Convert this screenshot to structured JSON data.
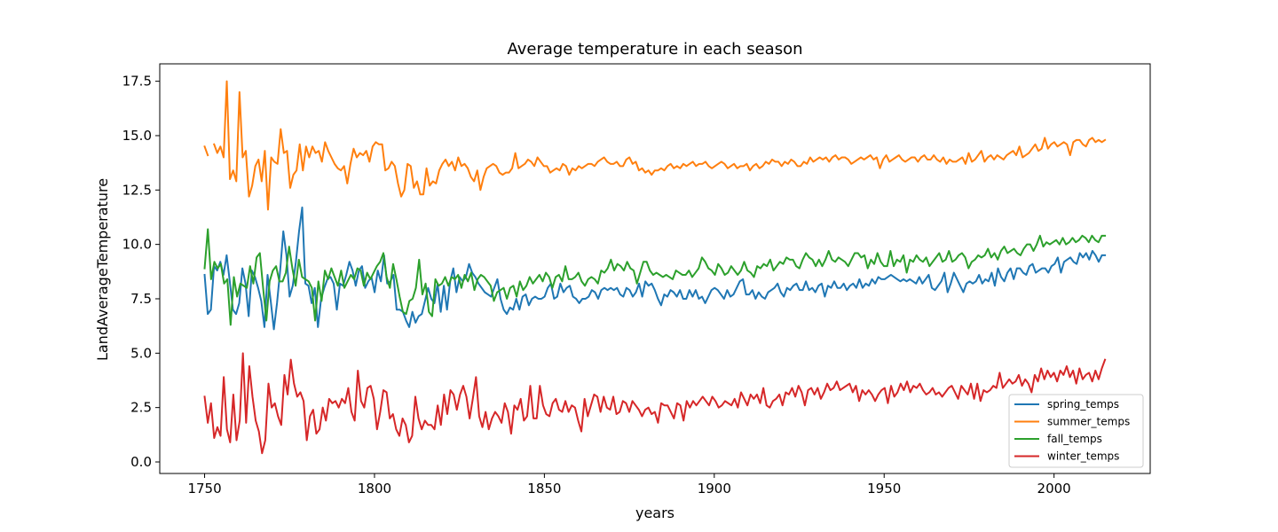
{
  "chart_data": {
    "type": "line",
    "title": "Average temperature in each season",
    "xlabel": "years",
    "ylabel": "LandAverageTemperature",
    "xlim": [
      1736.8,
      2028.3
    ],
    "ylim": [
      -0.53,
      18.3
    ],
    "x_ticks": [
      {
        "value": 1750,
        "label": "1750"
      },
      {
        "value": 1800,
        "label": "1800"
      },
      {
        "value": 1850,
        "label": "1850"
      },
      {
        "value": 1900,
        "label": "1900"
      },
      {
        "value": 1950,
        "label": "1950"
      },
      {
        "value": 2000,
        "label": "2000"
      }
    ],
    "y_ticks": [
      {
        "value": 0.0,
        "label": "0.0"
      },
      {
        "value": 2.5,
        "label": "2.5"
      },
      {
        "value": 5.0,
        "label": "5.0"
      },
      {
        "value": 7.5,
        "label": "7.5"
      },
      {
        "value": 10.0,
        "label": "10.0"
      },
      {
        "value": 12.5,
        "label": "12.5"
      },
      {
        "value": 15.0,
        "label": "15.0"
      },
      {
        "value": 17.5,
        "label": "17.5"
      }
    ],
    "grid": false,
    "legend_position": "lower-right",
    "x_start": 1750,
    "x_end": 2015,
    "series": [
      {
        "name": "spring_temps",
        "color": "#1f77b4",
        "values": [
          8.6,
          6.8,
          7.0,
          9.0,
          8.8,
          9.2,
          8.6,
          9.5,
          8.3,
          7.0,
          6.8,
          7.3,
          8.9,
          8.2,
          6.7,
          8.8,
          8.5,
          8.0,
          7.4,
          6.2,
          8.6,
          7.4,
          6.1,
          7.3,
          8.8,
          10.6,
          9.5,
          7.6,
          8.1,
          9.2,
          10.6,
          11.7,
          8.2,
          8.1,
          7.3,
          8.0,
          6.2,
          7.5,
          8.0,
          8.4,
          8.5,
          8.2,
          7.0,
          8.2,
          8.1,
          8.6,
          9.2,
          8.8,
          8.1,
          8.8,
          9.0,
          8.0,
          8.3,
          8.5,
          7.8,
          8.8,
          8.3,
          9.5,
          8.2,
          8.3,
          8.6,
          7.0,
          7.0,
          6.9,
          6.5,
          6.2,
          6.9,
          6.4,
          6.7,
          6.8,
          7.4,
          8.0,
          7.5,
          7.3,
          8.2,
          6.9,
          8.1,
          7.0,
          8.3,
          8.9,
          7.8,
          8.5,
          8.3,
          8.5,
          9.1,
          8.7,
          8.5,
          8.2,
          8.0,
          7.8,
          7.7,
          7.6,
          8.0,
          8.4,
          7.5,
          7.0,
          6.8,
          7.1,
          7.0,
          7.5,
          7.0,
          7.6,
          7.7,
          7.2,
          7.5,
          7.6,
          7.5,
          7.5,
          7.6,
          8.0,
          8.2,
          7.5,
          7.6,
          8.2,
          7.8,
          8.0,
          8.1,
          7.6,
          7.5,
          7.3,
          7.5,
          7.5,
          7.6,
          7.9,
          7.8,
          7.5,
          7.9,
          8.0,
          7.9,
          8.0,
          7.9,
          8.0,
          7.7,
          7.6,
          8.0,
          7.9,
          7.6,
          7.8,
          8.2,
          7.6,
          8.3,
          8.1,
          8.2,
          7.9,
          7.5,
          7.2,
          7.7,
          7.6,
          7.9,
          7.8,
          7.6,
          7.9,
          7.5,
          7.5,
          7.9,
          7.6,
          7.9,
          7.5,
          7.6,
          7.3,
          7.6,
          7.9,
          8.0,
          7.9,
          7.7,
          7.5,
          7.9,
          7.6,
          7.7,
          8.0,
          8.3,
          8.4,
          7.7,
          7.7,
          7.9,
          7.5,
          7.8,
          7.6,
          7.5,
          7.8,
          7.9,
          8.0,
          8.2,
          7.8,
          7.6,
          8.0,
          7.9,
          8.1,
          8.2,
          7.9,
          7.9,
          8.3,
          7.9,
          8.0,
          7.8,
          8.1,
          8.2,
          7.6,
          8.1,
          8.0,
          8.3,
          8.0,
          8.0,
          8.2,
          7.9,
          8.1,
          8.2,
          8.0,
          8.4,
          8.0,
          8.2,
          8.1,
          8.4,
          8.2,
          8.5,
          8.4,
          8.4,
          8.5,
          8.6,
          8.5,
          8.4,
          8.3,
          8.4,
          8.3,
          8.4,
          8.3,
          8.2,
          8.5,
          8.2,
          8.4,
          8.6,
          8.0,
          7.9,
          8.1,
          8.3,
          8.7,
          7.8,
          8.2,
          8.7,
          8.4,
          8.1,
          7.8,
          8.2,
          8.3,
          8.2,
          8.3,
          8.6,
          8.2,
          8.4,
          8.3,
          8.7,
          8.1,
          8.9,
          8.5,
          8.3,
          8.7,
          8.9,
          8.4,
          8.9,
          8.9,
          8.7,
          8.6,
          9.0,
          9.1,
          8.7,
          8.8,
          8.9,
          8.9,
          8.7,
          9.0,
          9.1,
          9.4,
          8.7,
          9.2,
          9.3,
          9.4,
          9.2,
          9.1,
          9.6,
          9.4,
          9.6,
          9.3,
          9.7,
          9.5,
          9.2,
          9.5,
          9.5
        ]
      },
      {
        "name": "summer_temps",
        "color": "#ff7f0e",
        "values": [
          14.5,
          14.1,
          null,
          14.6,
          14.2,
          14.5,
          14.0,
          17.5,
          13.0,
          13.4,
          12.9,
          17.0,
          14.0,
          14.3,
          12.2,
          12.7,
          13.6,
          13.9,
          12.9,
          14.3,
          11.6,
          14.0,
          13.8,
          13.7,
          15.3,
          14.2,
          14.3,
          12.6,
          13.2,
          13.4,
          14.6,
          13.4,
          14.5,
          14.0,
          14.5,
          14.2,
          14.3,
          13.8,
          14.7,
          14.3,
          14.0,
          13.7,
          13.5,
          13.4,
          13.6,
          12.8,
          13.7,
          14.4,
          14.0,
          14.2,
          14.1,
          14.3,
          13.8,
          14.5,
          14.7,
          14.6,
          14.6,
          13.4,
          13.5,
          13.8,
          13.6,
          12.8,
          12.2,
          12.5,
          13.7,
          13.6,
          12.6,
          12.9,
          12.3,
          12.3,
          13.5,
          12.7,
          12.9,
          12.8,
          13.4,
          13.7,
          13.9,
          13.6,
          13.8,
          13.4,
          14.0,
          13.6,
          13.7,
          13.5,
          13.1,
          12.9,
          13.4,
          12.5,
          13.1,
          13.5,
          13.6,
          13.7,
          13.6,
          13.3,
          13.2,
          13.3,
          13.3,
          13.5,
          14.2,
          13.5,
          13.6,
          13.7,
          13.9,
          13.8,
          13.6,
          14.0,
          13.8,
          13.6,
          13.6,
          13.3,
          13.4,
          13.5,
          13.4,
          13.7,
          13.6,
          13.2,
          13.5,
          13.4,
          13.6,
          13.5,
          13.6,
          13.7,
          13.7,
          13.6,
          13.8,
          13.9,
          14.0,
          13.8,
          13.7,
          13.7,
          13.8,
          13.6,
          13.6,
          13.9,
          14.0,
          13.7,
          13.8,
          13.4,
          13.5,
          13.3,
          13.4,
          13.2,
          13.4,
          13.4,
          13.5,
          13.4,
          13.6,
          13.7,
          13.5,
          13.6,
          13.5,
          13.7,
          13.6,
          13.7,
          13.8,
          13.6,
          13.7,
          13.7,
          13.8,
          13.6,
          13.5,
          13.6,
          13.7,
          13.8,
          13.7,
          13.5,
          13.6,
          13.7,
          13.5,
          13.6,
          13.6,
          13.7,
          13.4,
          13.6,
          13.7,
          13.5,
          13.6,
          13.8,
          13.7,
          13.9,
          13.8,
          13.8,
          13.6,
          13.8,
          13.7,
          13.9,
          13.8,
          13.6,
          13.6,
          13.8,
          13.7,
          14.0,
          13.8,
          13.9,
          14.0,
          13.9,
          14.0,
          13.8,
          14.0,
          14.1,
          13.9,
          14.0,
          14.0,
          13.9,
          13.7,
          13.8,
          13.9,
          14.0,
          13.9,
          14.0,
          14.1,
          13.9,
          14.0,
          13.5,
          13.9,
          14.1,
          13.8,
          13.9,
          14.0,
          14.1,
          13.9,
          13.8,
          13.9,
          14.0,
          14.0,
          13.8,
          14.0,
          14.1,
          13.9,
          13.9,
          14.1,
          13.9,
          13.8,
          14.0,
          13.7,
          13.9,
          13.8,
          13.8,
          13.9,
          14.0,
          13.7,
          14.2,
          13.8,
          13.9,
          14.1,
          14.3,
          13.8,
          14.0,
          14.1,
          13.9,
          14.1,
          14.0,
          13.9,
          14.1,
          14.2,
          14.3,
          14.1,
          14.5,
          14.0,
          14.1,
          14.2,
          14.4,
          14.6,
          14.3,
          14.4,
          14.9,
          14.4,
          14.6,
          14.7,
          14.5,
          14.6,
          14.7,
          14.6,
          14.1,
          14.7,
          14.8,
          14.8,
          14.6,
          14.5,
          14.8,
          14.9,
          14.7,
          14.8,
          14.7,
          14.8
        ]
      },
      {
        "name": "fall_temps",
        "color": "#2ca02c",
        "values": [
          8.9,
          10.7,
          8.4,
          9.2,
          8.9,
          9.1,
          8.2,
          8.4,
          6.3,
          8.5,
          7.6,
          8.2,
          8.1,
          8.0,
          9.0,
          8.2,
          9.4,
          9.6,
          8.0,
          6.5,
          8.3,
          8.8,
          9.0,
          8.3,
          8.3,
          8.7,
          9.9,
          8.9,
          8.1,
          9.3,
          8.5,
          8.4,
          8.3,
          8.0,
          6.5,
          8.3,
          7.4,
          8.8,
          8.4,
          8.9,
          8.5,
          8.1,
          8.8,
          8.0,
          8.3,
          8.6,
          8.4,
          8.9,
          8.8,
          8.1,
          8.7,
          8.4,
          8.7,
          9.0,
          9.2,
          9.6,
          8.5,
          8.0,
          9.1,
          8.4,
          7.6,
          6.9,
          6.8,
          7.4,
          7.5,
          8.0,
          9.3,
          7.7,
          8.2,
          6.9,
          6.7,
          8.4,
          8.1,
          8.2,
          8.5,
          8.1,
          8.5,
          8.4,
          8.6,
          8.0,
          8.6,
          8.3,
          8.7,
          7.9,
          8.4,
          8.6,
          8.5,
          8.3,
          8.1,
          7.4,
          7.8,
          7.9,
          8.0,
          7.5,
          8.0,
          8.1,
          7.6,
          8.3,
          7.9,
          8.1,
          8.5,
          8.2,
          8.4,
          8.6,
          8.3,
          8.7,
          8.5,
          8.0,
          8.5,
          8.6,
          8.3,
          9.0,
          8.4,
          8.4,
          8.5,
          8.7,
          8.3,
          8.1,
          8.4,
          8.5,
          8.4,
          8.2,
          8.8,
          8.7,
          8.9,
          9.3,
          8.8,
          9.1,
          9.0,
          8.8,
          9.2,
          8.9,
          8.8,
          8.2,
          8.7,
          9.2,
          9.2,
          8.8,
          8.6,
          8.7,
          8.6,
          8.5,
          8.6,
          8.5,
          8.4,
          8.8,
          8.7,
          8.6,
          8.6,
          8.8,
          8.5,
          8.7,
          8.9,
          9.4,
          9.2,
          8.9,
          8.8,
          8.6,
          9.1,
          8.9,
          8.6,
          8.7,
          9.0,
          8.8,
          8.6,
          8.8,
          9.2,
          8.8,
          8.7,
          8.5,
          9.0,
          8.9,
          9.1,
          9.0,
          9.3,
          8.8,
          9.0,
          9.2,
          9.1,
          9.4,
          9.3,
          9.3,
          9.0,
          8.9,
          9.3,
          9.6,
          9.4,
          9.3,
          9.0,
          9.3,
          9.0,
          9.3,
          9.7,
          9.3,
          9.2,
          9.4,
          9.3,
          9.2,
          9.0,
          9.3,
          9.6,
          9.6,
          9.4,
          9.5,
          8.9,
          9.3,
          9.1,
          9.6,
          9.2,
          9.0,
          9.0,
          9.7,
          9.0,
          9.3,
          9.2,
          9.5,
          8.7,
          9.3,
          9.2,
          9.5,
          9.3,
          9.2,
          9.4,
          9.0,
          9.2,
          9.4,
          9.6,
          9.2,
          9.3,
          9.7,
          9.2,
          9.3,
          9.5,
          9.6,
          9.4,
          8.9,
          9.2,
          9.3,
          9.5,
          9.4,
          9.5,
          9.8,
          9.4,
          9.6,
          9.3,
          9.7,
          9.9,
          9.6,
          9.7,
          9.8,
          9.6,
          9.5,
          9.8,
          10.0,
          10.0,
          9.7,
          10.0,
          10.4,
          9.9,
          10.1,
          10.0,
          10.1,
          10.2,
          10.0,
          10.3,
          10.0,
          10.1,
          10.3,
          10.1,
          10.2,
          10.4,
          10.3,
          10.1,
          10.4,
          10.2,
          10.1,
          10.4,
          10.4
        ]
      },
      {
        "name": "winter_temps",
        "color": "#d62728",
        "values": [
          3.0,
          1.8,
          2.7,
          1.1,
          1.6,
          1.2,
          3.9,
          1.5,
          0.9,
          3.1,
          1.0,
          1.9,
          5.0,
          1.8,
          4.4,
          3.0,
          1.9,
          1.4,
          0.4,
          1.0,
          3.6,
          2.5,
          2.7,
          2.1,
          1.7,
          4.0,
          3.1,
          4.7,
          3.6,
          3.0,
          3.2,
          2.8,
          1.0,
          2.1,
          2.4,
          1.3,
          1.5,
          2.5,
          1.9,
          2.9,
          2.7,
          2.8,
          2.5,
          2.9,
          2.7,
          3.4,
          2.3,
          1.9,
          4.2,
          2.8,
          2.5,
          3.4,
          3.5,
          2.9,
          1.5,
          2.3,
          3.3,
          3.2,
          2.0,
          2.2,
          1.5,
          1.2,
          2.0,
          1.7,
          0.9,
          1.2,
          3.0,
          2.0,
          1.5,
          1.9,
          1.7,
          1.7,
          1.5,
          2.6,
          1.7,
          3.1,
          2.2,
          3.3,
          3.1,
          2.4,
          3.1,
          3.5,
          3.0,
          2.0,
          2.9,
          3.9,
          2.1,
          1.6,
          2.3,
          1.5,
          2.0,
          2.3,
          2.1,
          1.8,
          2.7,
          2.3,
          1.3,
          2.6,
          2.4,
          2.9,
          1.9,
          2.1,
          3.5,
          2.0,
          2.0,
          3.5,
          2.6,
          2.2,
          2.1,
          2.7,
          2.9,
          2.4,
          2.3,
          2.8,
          2.3,
          2.6,
          2.5,
          1.9,
          1.4,
          2.9,
          2.1,
          2.6,
          3.1,
          3.0,
          2.3,
          3.0,
          2.5,
          2.4,
          3.0,
          2.2,
          2.3,
          2.8,
          2.7,
          2.3,
          2.8,
          2.6,
          2.4,
          2.1,
          2.4,
          2.5,
          2.2,
          2.3,
          1.8,
          2.7,
          2.6,
          2.6,
          2.3,
          2.0,
          2.7,
          2.6,
          1.9,
          2.8,
          2.5,
          2.8,
          2.6,
          2.8,
          3.0,
          2.8,
          2.6,
          3.0,
          2.8,
          2.5,
          2.6,
          2.8,
          2.7,
          2.6,
          2.9,
          2.5,
          3.2,
          2.9,
          2.6,
          3.1,
          2.9,
          3.1,
          2.7,
          3.4,
          2.6,
          2.5,
          2.8,
          2.9,
          3.1,
          2.6,
          3.2,
          3.1,
          3.4,
          3.0,
          3.5,
          3.2,
          2.6,
          3.3,
          3.4,
          3.1,
          3.4,
          2.9,
          3.2,
          3.6,
          3.3,
          3.4,
          3.7,
          3.3,
          3.4,
          3.5,
          3.6,
          3.2,
          3.5,
          2.8,
          3.3,
          3.1,
          3.3,
          3.1,
          2.8,
          3.1,
          3.3,
          3.4,
          2.7,
          3.5,
          3.0,
          3.2,
          3.6,
          3.3,
          3.7,
          3.2,
          3.5,
          3.4,
          3.6,
          3.3,
          3.1,
          3.2,
          3.4,
          3.1,
          3.2,
          3.0,
          3.2,
          3.4,
          3.5,
          3.2,
          2.9,
          3.5,
          3.3,
          3.1,
          3.6,
          2.9,
          3.6,
          2.8,
          3.3,
          3.2,
          3.3,
          3.5,
          3.4,
          4.1,
          3.4,
          3.6,
          3.8,
          3.6,
          3.7,
          4.0,
          3.5,
          3.8,
          3.6,
          3.2,
          4.0,
          3.7,
          4.3,
          3.8,
          4.2,
          3.9,
          4.1,
          3.7,
          4.2,
          4.0,
          4.4,
          3.9,
          4.2,
          3.6,
          4.3,
          3.8,
          4.0,
          4.1,
          3.7,
          4.2,
          3.8,
          4.3,
          4.7
        ]
      }
    ]
  }
}
